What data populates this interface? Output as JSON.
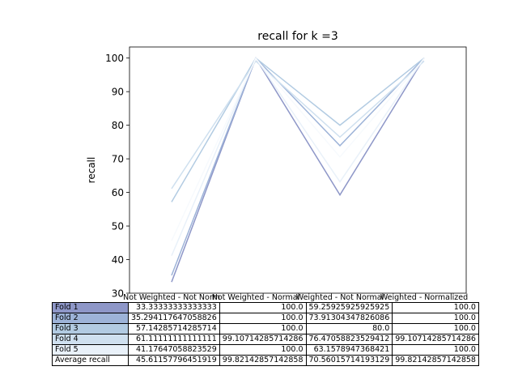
{
  "chart_data": {
    "type": "line",
    "title": "recall for k =3",
    "xlabel": "",
    "ylabel": "recall",
    "ylim": [
      30,
      103.3
    ],
    "yticks": [
      30,
      40,
      50,
      60,
      70,
      80,
      90,
      100
    ],
    "categories": [
      "Not Weighted - Not Norm",
      "Not Weighted - Normal",
      "Weighted - Not Normal",
      "Weighted - Normalized"
    ],
    "series": [
      {
        "name": "Fold 1",
        "color": "#8e97c8",
        "values": [
          33.3333333333333,
          100.0,
          59.25925925925925,
          100.0
        ],
        "cells": [
          "33.33333333333333",
          "100.0",
          "59.25925925925925",
          "100.0"
        ]
      },
      {
        "name": "Fold 2",
        "color": "#9db3d8",
        "values": [
          35.294117647058826,
          100.0,
          73.91304347826086,
          100.0
        ],
        "cells": [
          "35.294117647058826",
          "100.0",
          "73.91304347826086",
          "100.0"
        ]
      },
      {
        "name": "Fold 3",
        "color": "#b2cbe2",
        "values": [
          57.14285714285714,
          100.0,
          80.0,
          100.0
        ],
        "cells": [
          "57.14285714285714",
          "100.0",
          "80.0",
          "100.0"
        ]
      },
      {
        "name": "Fold 4",
        "color": "#cfe0ef",
        "values": [
          61.11111111111111,
          99.10714285714286,
          76.47058823529412,
          99.10714285714286
        ],
        "cells": [
          "61.11111111111111",
          "99.10714285714286",
          "76.47058823529412",
          "99.10714285714286"
        ]
      },
      {
        "name": "Fold 5",
        "color": "#e9f1f9",
        "values": [
          41.17647058823529,
          100.0,
          63.1578947368421,
          100.0
        ],
        "cells": [
          "41.17647058823529",
          "100.0",
          "63.1578947368421",
          "100.0"
        ]
      },
      {
        "name": "Average recall",
        "color": "#ffffff",
        "values": [
          45.61157796451919,
          99.82142857142858,
          70.56015714193128,
          99.82142857142858
        ],
        "cells": [
          "45.61157796451919",
          "99.82142857142858",
          "70.56015714193129",
          "99.82142857142858"
        ]
      }
    ]
  }
}
